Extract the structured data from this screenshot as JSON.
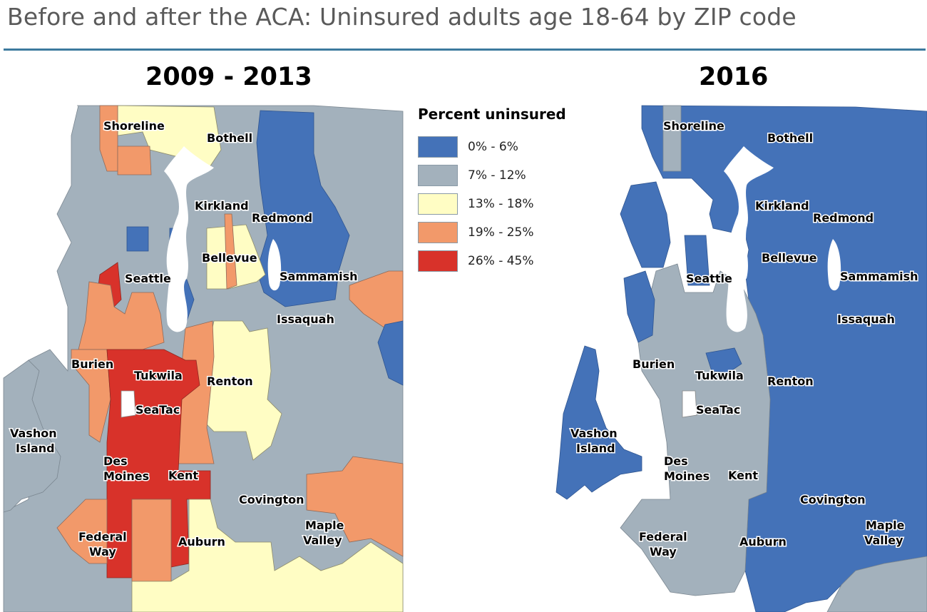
{
  "title": "Before and after the ACA: Uninsured adults age 18-64 by ZIP code",
  "colors": {
    "c0_6": "#4472b8",
    "c7_12": "#a3b1bc",
    "c13_18": "#fffdc4",
    "c19_25": "#f2996a",
    "c26_45": "#d8322a",
    "water": "#ffffff",
    "rule": "#3d7a9e"
  },
  "legend": {
    "title": "Percent uninsured",
    "items": [
      {
        "label": "0% - 6%",
        "color": "#4472b8"
      },
      {
        "label": "7% - 12%",
        "color": "#a3b1bc"
      },
      {
        "label": "13% - 18%",
        "color": "#fffdc4"
      },
      {
        "label": "19% - 25%",
        "color": "#f2996a"
      },
      {
        "label": "26% - 45%",
        "color": "#d8322a"
      }
    ]
  },
  "maps": [
    {
      "title": "2009 - 2013",
      "places": [
        "Shoreline",
        "Bothell",
        "Kirkland",
        "Redmond",
        "Bellevue",
        "Sammamish",
        "Seattle",
        "Issaquah",
        "Burien",
        "Tukwila",
        "Renton",
        "SeaTac",
        "Vashon",
        "Island",
        "Des",
        "Moines",
        "Kent",
        "Covington",
        "Maple",
        "Valley",
        "Federal",
        "Way",
        "Auburn"
      ]
    },
    {
      "title": "2016",
      "places": [
        "Shoreline",
        "Bothell",
        "Kirkland",
        "Redmond",
        "Bellevue",
        "Sammamish",
        "Seattle",
        "Issaquah",
        "Burien",
        "Tukwila",
        "Renton",
        "SeaTac",
        "Vashon",
        "Island",
        "Des",
        "Moines",
        "Kent",
        "Covington",
        "Maple",
        "Valley",
        "Federal",
        "Way",
        "Auburn"
      ]
    }
  ]
}
